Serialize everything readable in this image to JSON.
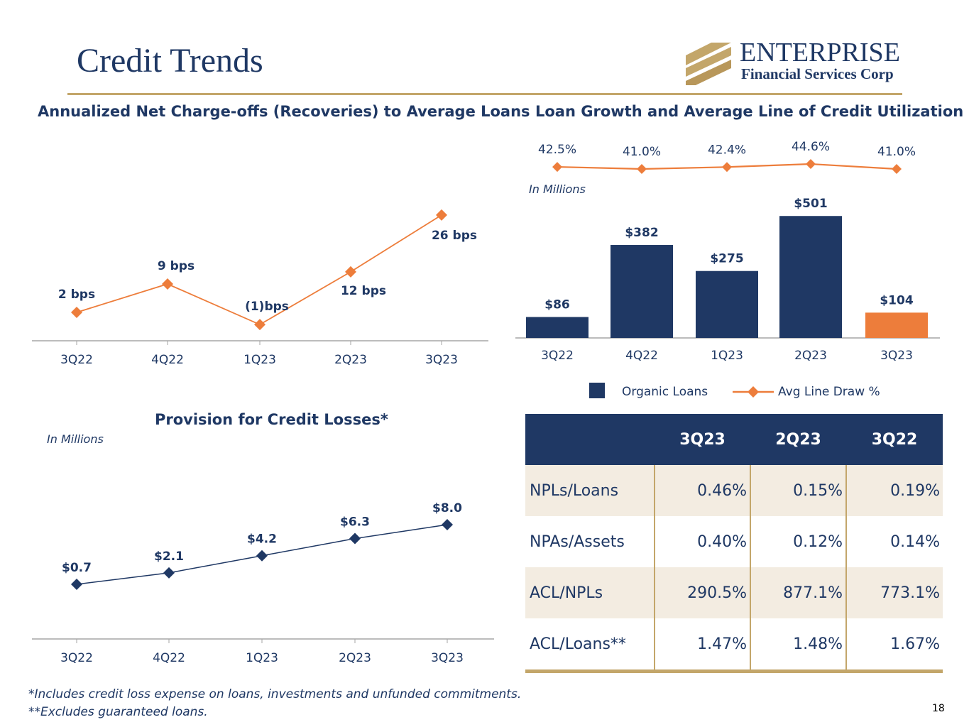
{
  "slide": {
    "title": "Credit Trends",
    "page_number": "18",
    "logo": {
      "line1": "ENTERPRISE",
      "line2": "Financial Services Corp"
    },
    "footnotes": [
      "*Includes credit loss expense on loans, investments and unfunded commitments.",
      "**Excludes guaranteed loans."
    ]
  },
  "colors": {
    "navy": "#1f3864",
    "orange": "#ed7d3b",
    "gold": "#c3a66a",
    "shade": "#f3ece1"
  },
  "chart_data": [
    {
      "type": "line",
      "title": "Annualized Net Charge-offs (Recoveries) to Average Loans",
      "categories": [
        "3Q22",
        "4Q22",
        "1Q23",
        "2Q23",
        "3Q23"
      ],
      "values": [
        2,
        9,
        -1,
        12,
        26
      ],
      "labels": [
        "2  bps",
        "9 bps",
        "(1)bps",
        "12 bps",
        "26 bps"
      ],
      "unit": "bps",
      "ylim": [
        -5,
        30
      ]
    },
    {
      "type": "bar+line",
      "title": "Loan Growth and Average Line of Credit Utilization",
      "note": "In Millions",
      "categories": [
        "3Q22",
        "4Q22",
        "1Q23",
        "2Q23",
        "3Q23"
      ],
      "series": [
        {
          "name": "Organic Loans",
          "type": "bar",
          "values": [
            86,
            382,
            275,
            501,
            104
          ],
          "labels": [
            "$86",
            "$382",
            "$275",
            "$501",
            "$104"
          ]
        },
        {
          "name": "Avg Line Draw %",
          "type": "line",
          "values": [
            42.5,
            41.0,
            42.4,
            44.6,
            41.0
          ],
          "labels": [
            "42.5%",
            "41.0%",
            "42.4%",
            "44.6%",
            "41.0%"
          ]
        }
      ],
      "ylim": [
        0,
        560
      ],
      "legend": [
        "Organic Loans",
        "Avg Line Draw %"
      ]
    },
    {
      "type": "line",
      "title": "Provision for Credit Losses*",
      "note": "In Millions",
      "categories": [
        "3Q22",
        "4Q22",
        "1Q23",
        "2Q23",
        "3Q23"
      ],
      "values": [
        0.7,
        2.1,
        4.2,
        6.3,
        8.0
      ],
      "labels": [
        "$0.7",
        "$2.1",
        "$4.2",
        "$6.3",
        "$8.0"
      ],
      "ylim": [
        -6,
        14
      ]
    }
  ],
  "table": {
    "headers": [
      "",
      "3Q23",
      "2Q23",
      "3Q22"
    ],
    "rows": [
      [
        "NPLs/Loans",
        "0.46%",
        "0.15%",
        "0.19%"
      ],
      [
        "NPAs/Assets",
        "0.40%",
        "0.12%",
        "0.14%"
      ],
      [
        "ACL/NPLs",
        "290.5%",
        "877.1%",
        "773.1%"
      ],
      [
        "ACL/Loans**",
        "1.47%",
        "1.48%",
        "1.67%"
      ]
    ]
  }
}
